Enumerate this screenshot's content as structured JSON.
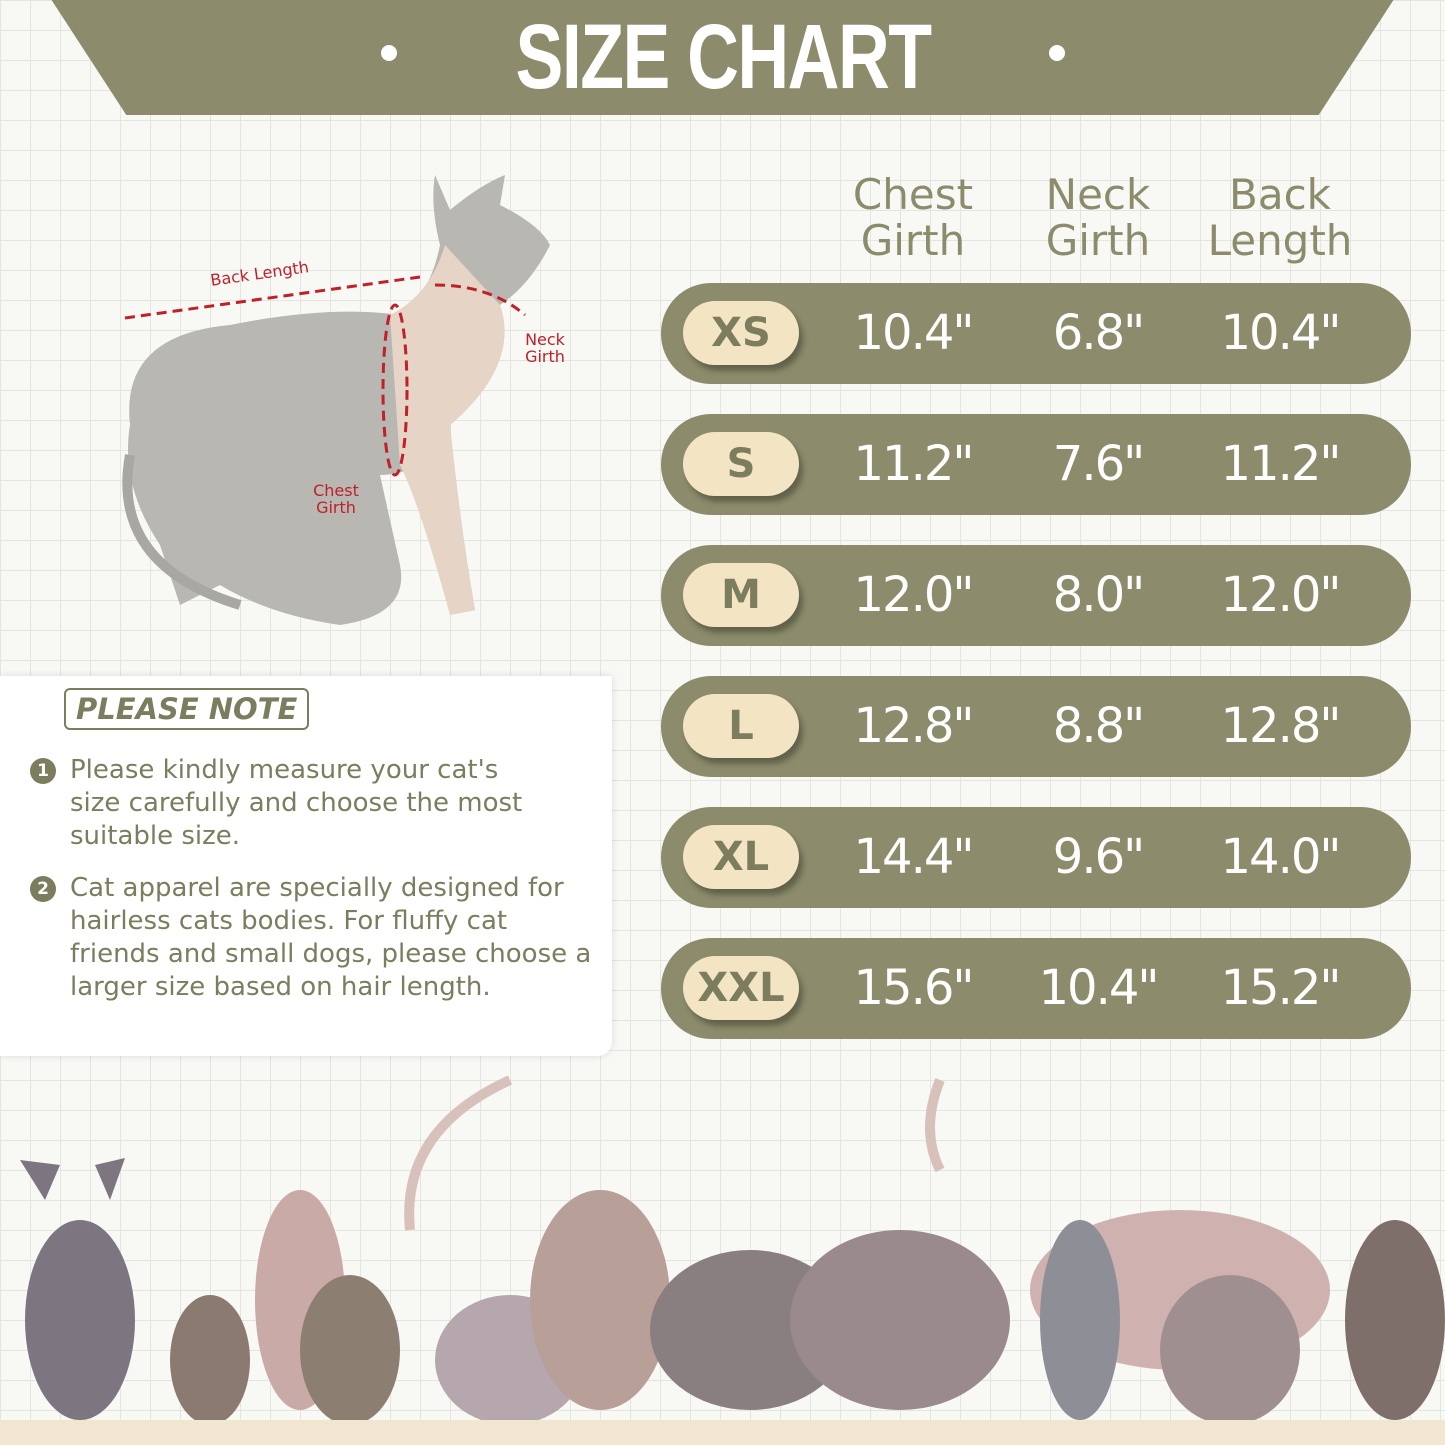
{
  "header": {
    "title": "SIZE CHART"
  },
  "diagram_labels": {
    "back_length": "Back Length",
    "neck_girth": "Neck Girth",
    "chest_girth": "Chest Girth"
  },
  "table": {
    "columns": [
      "Chest Girth",
      "Neck Girth",
      "Back Length"
    ],
    "rows": [
      {
        "size": "XS",
        "values": [
          "10.4\"",
          "6.8\"",
          "10.4\""
        ]
      },
      {
        "size": "S",
        "values": [
          "11.2\"",
          "7.6\"",
          "11.2\""
        ]
      },
      {
        "size": "M",
        "values": [
          "12.0\"",
          "8.0\"",
          "12.0\""
        ]
      },
      {
        "size": "L",
        "values": [
          "12.8\"",
          "8.8\"",
          "12.8\""
        ]
      },
      {
        "size": "XL",
        "values": [
          "14.4\"",
          "9.6\"",
          "14.0\""
        ]
      },
      {
        "size": "XXL",
        "values": [
          "15.6\"",
          "10.4\"",
          "15.2\""
        ]
      }
    ]
  },
  "note": {
    "title": "PLEASE NOTE",
    "items": [
      {
        "num": "1",
        "text": "Please kindly measure your cat's size carefully and choose the most suitable size."
      },
      {
        "num": "2",
        "text": "Cat apparel are specially designed for hairless cats bodies. For fluffy cat friends and small dogs, please choose a larger size based on hair length."
      }
    ]
  },
  "colors": {
    "olive": "#8c8c6c",
    "cream": "#f3e4c4",
    "measure_line": "#c0202a"
  }
}
